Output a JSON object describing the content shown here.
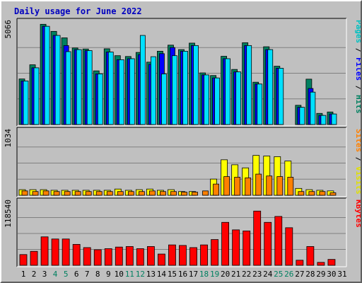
{
  "chart_data": {
    "type": "bar",
    "title": "Daily usage for June 2022",
    "days": [
      "1",
      "2",
      "3",
      "4",
      "5",
      "6",
      "7",
      "8",
      "9",
      "10",
      "11",
      "12",
      "13",
      "14",
      "15",
      "16",
      "17",
      "18",
      "19",
      "20",
      "21",
      "22",
      "23",
      "24",
      "25",
      "26",
      "27",
      "28",
      "29",
      "30",
      "31"
    ],
    "weekend_days": [
      "4",
      "5",
      "11",
      "12",
      "18",
      "19",
      "25",
      "26"
    ],
    "panels": [
      {
        "max_label": "5066",
        "ymax": 5066,
        "right_labels": [
          {
            "text": "Pages",
            "color": "#00c0c0"
          },
          {
            "text": " / ",
            "color": "#000000"
          },
          {
            "text": "Files",
            "color": "#0000ff"
          },
          {
            "text": " / ",
            "color": "#000000"
          },
          {
            "text": "Hits",
            "color": "#008060"
          }
        ],
        "series": [
          {
            "name": "Hits",
            "color": "#008060",
            "values": [
              2250,
              2950,
              4950,
              4600,
              4280,
              3780,
              3730,
              2650,
              3740,
              3400,
              3360,
              3560,
              3080,
              3620,
              3920,
              3700,
              4020,
              2550,
              2420,
              3370,
              2720,
              4040,
              2090,
              3840,
              2880,
              0,
              950,
              2240,
              550,
              620,
              0
            ]
          },
          {
            "name": "Files",
            "color": "#0000ff",
            "values": [
              2150,
              2800,
              4850,
              4400,
              3900,
              3700,
              3650,
              2500,
              3580,
              3200,
              3250,
              3450,
              2970,
              3500,
              3800,
              3620,
              3900,
              2450,
              2300,
              3250,
              2600,
              3900,
              2000,
              3700,
              2780,
              0,
              850,
              1780,
              450,
              520,
              0
            ]
          },
          {
            "name": "Pages",
            "color": "#00e0ff",
            "values": [
              2150,
              2800,
              4850,
              4400,
              3600,
              3700,
              3650,
              2500,
              3580,
              3200,
              3250,
              4400,
              3350,
              2500,
              3400,
              3620,
              3900,
              2450,
              2300,
              3250,
              2600,
              3900,
              2000,
              3700,
              2780,
              0,
              850,
              1600,
              450,
              520,
              0
            ]
          }
        ]
      },
      {
        "max_label": "1034",
        "ymax": 1034,
        "right_labels": [
          {
            "text": "Sites",
            "color": "#ff8000"
          },
          {
            "text": " / ",
            "color": "#000000"
          },
          {
            "text": "Visits",
            "color": "#e0e000"
          }
        ],
        "series": [
          {
            "name": "Visits",
            "color": "#ffff00",
            "values": [
              90,
              90,
              90,
              80,
              80,
              80,
              80,
              80,
              80,
              100,
              80,
              90,
              100,
              80,
              90,
              60,
              60,
              0,
              260,
              570,
              490,
              440,
              640,
              630,
              620,
              550,
              110,
              90,
              80,
              70,
              0
            ]
          },
          {
            "name": "Sites",
            "color": "#ff8000",
            "values": [
              70,
              60,
              70,
              60,
              60,
              60,
              60,
              60,
              60,
              60,
              60,
              60,
              70,
              60,
              60,
              50,
              50,
              70,
              180,
              300,
              290,
              280,
              340,
              310,
              300,
              290,
              60,
              60,
              60,
              40,
              0
            ]
          }
        ]
      },
      {
        "max_label": "118540",
        "ymax": 118540,
        "right_labels": [
          {
            "text": "KBytes",
            "color": "#ff0000"
          }
        ],
        "series": [
          {
            "name": "KBytes",
            "color": "#ff0000",
            "values": [
              20000,
              26000,
              53000,
              49000,
              49000,
              39000,
              33000,
              29000,
              31000,
              34000,
              35000,
              31000,
              35000,
              21000,
              38000,
              37000,
              33000,
              38000,
              48000,
              80000,
              66000,
              64000,
              101000,
              80000,
              91000,
              70000,
              9500,
              35000,
              5500,
              11000,
              0
            ]
          }
        ]
      }
    ]
  }
}
